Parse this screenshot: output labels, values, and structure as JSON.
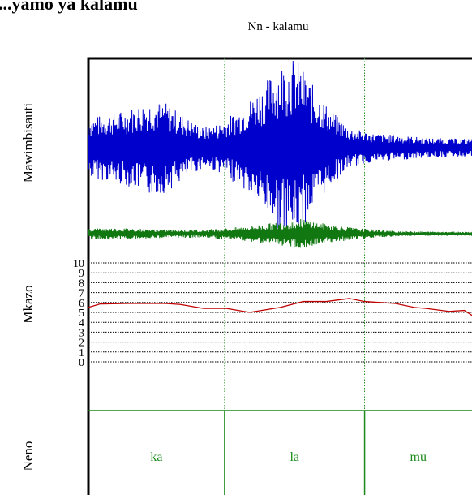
{
  "header": {
    "cut_title": "...yamo ya kalamu",
    "title": "Nn - kalamu"
  },
  "chart_data": {
    "type": "line",
    "title": "Nn - kalamu",
    "panels": [
      {
        "name": "waveform",
        "ylabel": "Mawimbisauti",
        "series": [
          {
            "color": "#0000cc",
            "envelope": [
              [
                0,
                0.33
              ],
              [
                0.04,
                0.36
              ],
              [
                0.1,
                0.42
              ],
              [
                0.16,
                0.52
              ],
              [
                0.2,
                0.5
              ],
              [
                0.26,
                0.32
              ],
              [
                0.3,
                0.22
              ],
              [
                0.34,
                0.27
              ],
              [
                0.4,
                0.44
              ],
              [
                0.46,
                0.72
              ],
              [
                0.5,
                0.93
              ],
              [
                0.54,
                1.0
              ],
              [
                0.58,
                0.72
              ],
              [
                0.63,
                0.42
              ],
              [
                0.68,
                0.22
              ],
              [
                0.74,
                0.16
              ],
              [
                0.8,
                0.14
              ],
              [
                0.88,
                0.11
              ],
              [
                0.95,
                0.1
              ],
              [
                1.0,
                0.1
              ]
            ]
          },
          {
            "color": "#117711",
            "envelope": [
              [
                0,
                0.08
              ],
              [
                0.1,
                0.08
              ],
              [
                0.2,
                0.06
              ],
              [
                0.3,
                0.06
              ],
              [
                0.4,
                0.1
              ],
              [
                0.5,
                0.17
              ],
              [
                0.56,
                0.22
              ],
              [
                0.62,
                0.14
              ],
              [
                0.7,
                0.08
              ],
              [
                0.8,
                0.04
              ],
              [
                0.9,
                0.03
              ],
              [
                1.0,
                0.03
              ]
            ]
          }
        ]
      },
      {
        "name": "pitch",
        "ylabel": "Mkazo",
        "ylim": [
          0,
          10
        ],
        "yticks": [
          "0",
          "1",
          "2",
          "3",
          "4",
          "5",
          "6",
          "7",
          "8",
          "9",
          "10"
        ],
        "grid": true,
        "series": [
          {
            "color": "#c00000",
            "x": [
              0,
              0.03,
              0.1,
              0.2,
              0.24,
              0.3,
              0.36,
              0.42,
              0.5,
              0.56,
              0.62,
              0.68,
              0.72,
              0.8,
              0.85,
              0.88,
              0.94,
              0.98,
              1.0
            ],
            "y": [
              5.5,
              5.85,
              5.9,
              5.9,
              5.8,
              5.4,
              5.4,
              5.0,
              5.5,
              6.1,
              6.1,
              6.4,
              6.1,
              5.9,
              5.5,
              5.4,
              5.1,
              5.2,
              4.7
            ]
          }
        ]
      },
      {
        "name": "syllables",
        "ylabel": "Neno",
        "labels": [
          "ka",
          "la",
          "mu"
        ],
        "boundaries": [
          0,
          0.355,
          0.72,
          1.0
        ]
      }
    ]
  },
  "colors": {
    "frame": "#000000",
    "divider": "#1a8a1a",
    "wave": "#0000cc",
    "wave2": "#117711",
    "pitch": "#c00000"
  }
}
